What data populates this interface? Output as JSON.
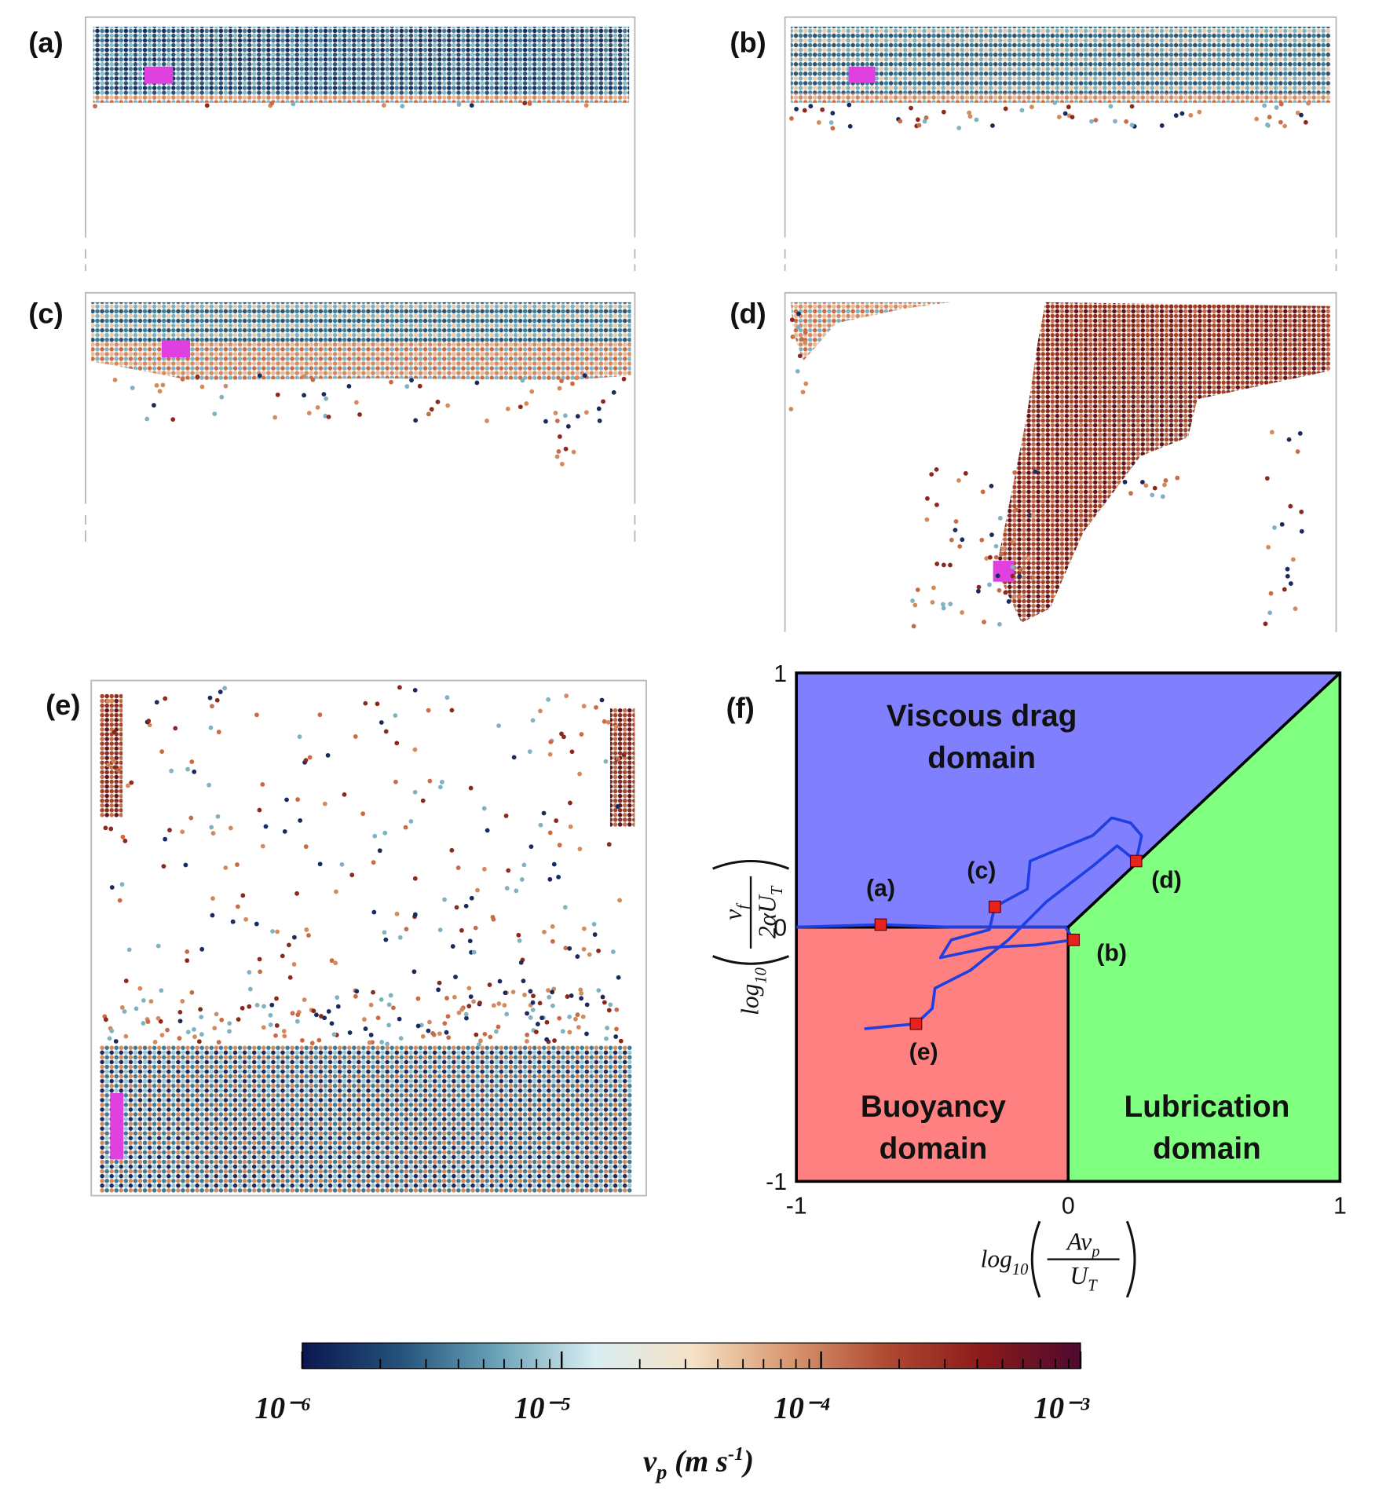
{
  "snapshots": [
    {
      "label": "(a)"
    },
    {
      "label": "(b)"
    },
    {
      "label": "(c)"
    },
    {
      "label": "(d)"
    },
    {
      "label": "(e)"
    }
  ],
  "chart_data": {
    "type": "regime",
    "panel_label": "(f)",
    "xlim": [
      -1,
      1
    ],
    "ylim": [
      -1,
      1
    ],
    "xticks": [
      -1,
      0,
      1
    ],
    "yticks": [
      -1,
      0,
      1
    ],
    "xlabel": {
      "func": "log",
      "base": "10",
      "num": "Av",
      "num_sub": "p",
      "den": "U",
      "den_sub": "T"
    },
    "ylabel": {
      "func": "log",
      "base": "10",
      "num": "v",
      "num_sub": "f",
      "den": "2αU",
      "den_sub": "T"
    },
    "domains": [
      {
        "name": [
          "Viscous drag",
          "domain"
        ],
        "color": "#8080ff"
      },
      {
        "name": [
          "Buoyancy",
          "domain"
        ],
        "color": "#ff8080"
      },
      {
        "name": [
          "Lubrication",
          "domain"
        ],
        "color": "#80ff80"
      }
    ],
    "trajectory": {
      "color": "#1f3fe0",
      "x": [
        -1.0,
        -0.69,
        -0.43,
        -0.01,
        0.02,
        -0.12,
        -0.29,
        -0.47,
        -0.43,
        -0.29,
        -0.27,
        -0.15,
        -0.14,
        -0.05,
        0.09,
        0.16,
        0.23,
        0.27,
        0.25,
        0.18,
        0.09,
        -0.08,
        -0.22,
        -0.36,
        -0.49,
        -0.5,
        -0.56,
        -0.75
      ],
      "y": [
        0.0,
        0.01,
        0.0,
        0.0,
        -0.05,
        -0.07,
        -0.08,
        -0.12,
        -0.05,
        -0.01,
        0.08,
        0.15,
        0.26,
        0.3,
        0.36,
        0.43,
        0.41,
        0.36,
        0.26,
        0.32,
        0.24,
        0.1,
        -0.05,
        -0.17,
        -0.24,
        -0.32,
        -0.38,
        -0.4
      ]
    },
    "points": [
      {
        "label": "(a)",
        "x": -0.69,
        "y": 0.01
      },
      {
        "label": "(b)",
        "x": 0.02,
        "y": -0.05
      },
      {
        "label": "(c)",
        "x": -0.27,
        "y": 0.08
      },
      {
        "label": "(d)",
        "x": 0.25,
        "y": 0.26
      },
      {
        "label": "(e)",
        "x": -0.56,
        "y": -0.38
      }
    ],
    "point_color": "#e8231e"
  },
  "colorbar": {
    "scale": "log",
    "xlim": [
      1e-06,
      0.001
    ],
    "ticks": [
      {
        "value": 1e-06,
        "label": "10⁻⁶"
      },
      {
        "value": 1e-05,
        "label": "10⁻⁵"
      },
      {
        "value": 0.0001,
        "label": "10⁻⁴"
      },
      {
        "value": 0.001,
        "label": "10⁻³"
      }
    ],
    "minor_ticks": [
      2e-06,
      3e-06,
      4e-06,
      5e-06,
      6e-06,
      7e-06,
      8e-06,
      9e-06,
      2e-05,
      3e-05,
      4e-05,
      5e-05,
      6e-05,
      7e-05,
      8e-05,
      9e-05,
      0.0002,
      0.0003,
      0.0004,
      0.0005,
      0.0006,
      0.0007,
      0.0008,
      0.0009
    ],
    "colors": [
      "#0b1650",
      "#24527a",
      "#6aa2b8",
      "#d8eef2",
      "#f6e2c6",
      "#d99870",
      "#b04a32",
      "#8a1a1a",
      "#4e0a30"
    ],
    "title": {
      "symbol": "v",
      "sub": "p",
      "unit": "(m s",
      "exp": "-1",
      "close": ")"
    }
  }
}
